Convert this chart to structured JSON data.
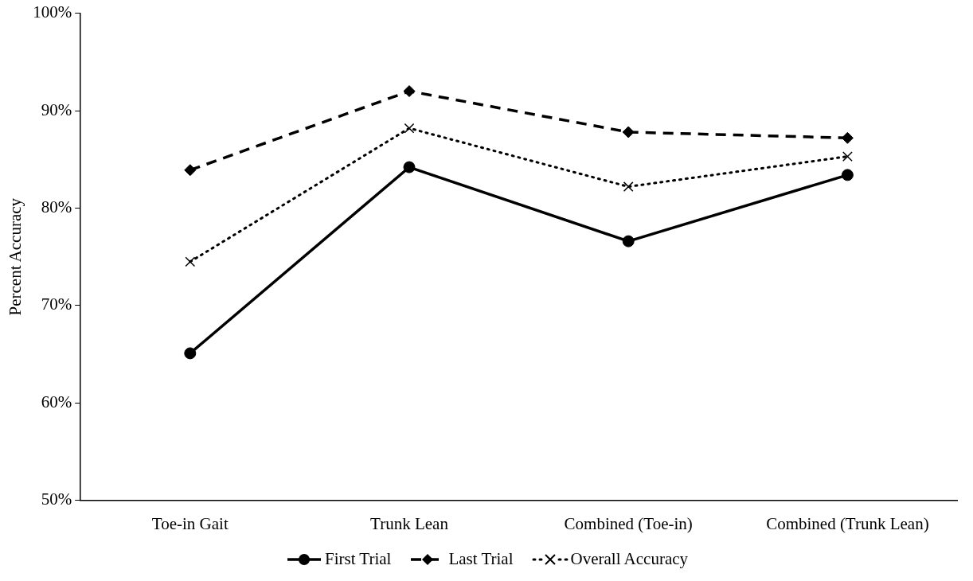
{
  "chart_data": {
    "type": "line",
    "ylabel": "Percent Accuracy",
    "categories": [
      "Toe-in Gait",
      "Trunk Lean",
      "Combined (Toe-in)",
      "Combined (Trunk Lean)"
    ],
    "series": [
      {
        "name": "First Trial",
        "color": "#000000",
        "marker": "circle",
        "line_style": "solid",
        "values": [
          65.1,
          84.2,
          76.6,
          83.4
        ]
      },
      {
        "name": "Last Trial",
        "color": "#000000",
        "marker": "diamond",
        "line_style": "dashed",
        "values": [
          83.9,
          92.0,
          87.8,
          87.2
        ]
      },
      {
        "name": "Overall Accuracy",
        "color": "#000000",
        "marker": "cross",
        "line_style": "dotted",
        "values": [
          74.5,
          88.2,
          82.2,
          85.3
        ]
      }
    ],
    "ylim": [
      50,
      100
    ],
    "yticks": [
      {
        "value": 50,
        "label": "50%"
      },
      {
        "value": 60,
        "label": "60%"
      },
      {
        "value": 70,
        "label": "70%"
      },
      {
        "value": 80,
        "label": "80%"
      },
      {
        "value": 90,
        "label": "90%"
      },
      {
        "value": 100,
        "label": "100%"
      }
    ],
    "grid": false,
    "legend": "bottom"
  }
}
